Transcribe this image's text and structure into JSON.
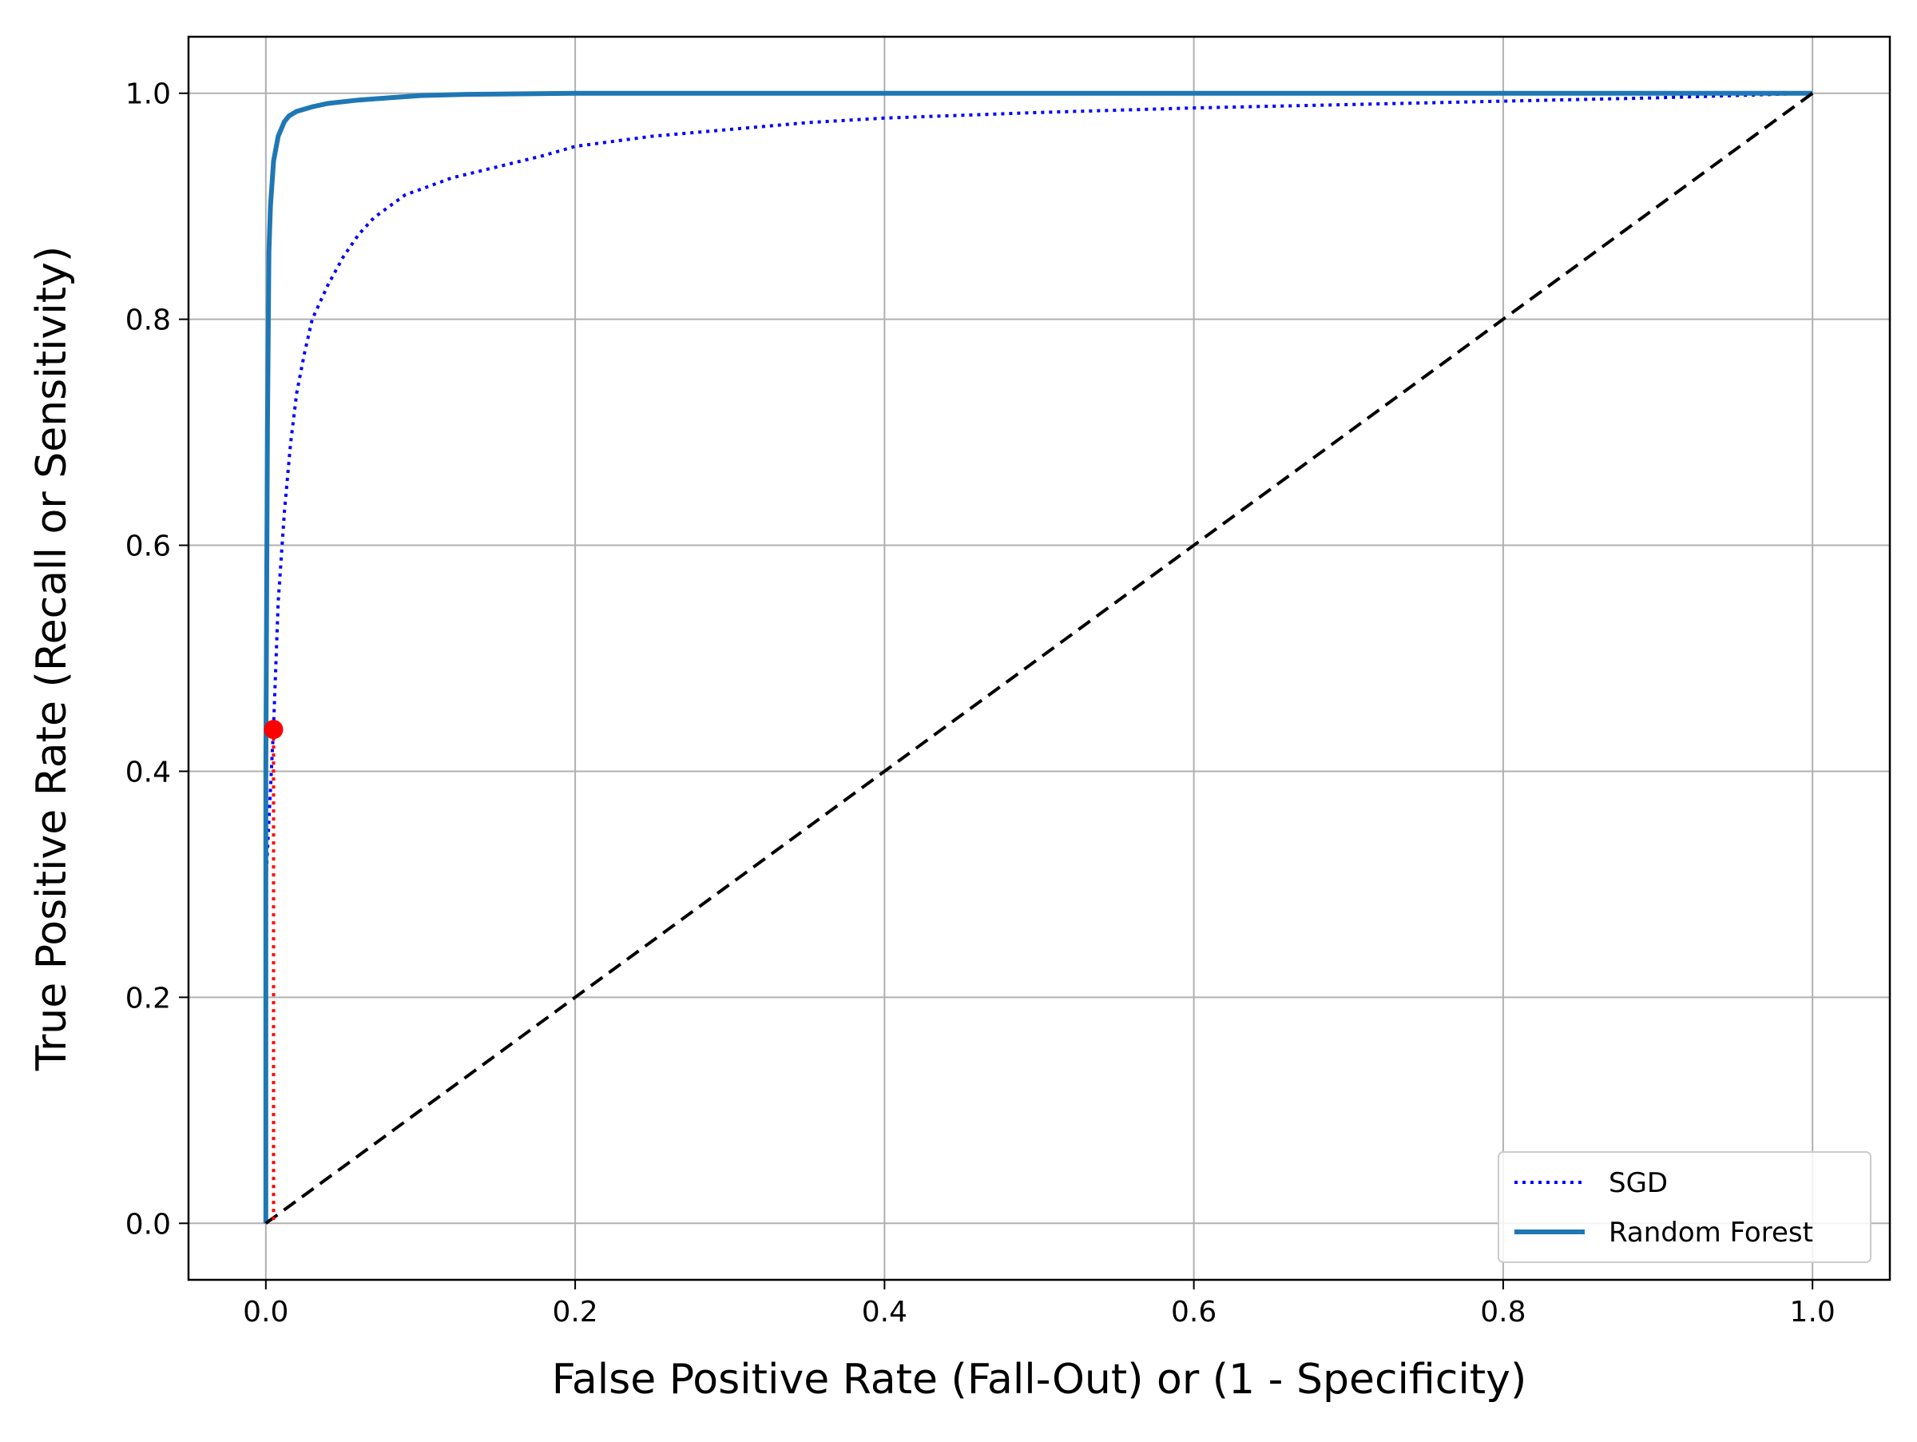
{
  "chart_data": {
    "type": "line",
    "title": "",
    "xlabel": "False Positive Rate (Fall-Out) or (1 - Specificity)",
    "ylabel": "True Positive Rate (Recall or Sensitivity)",
    "xlim": [
      -0.05,
      1.05
    ],
    "ylim": [
      -0.05,
      1.05
    ],
    "xticks": [
      "0.0",
      "0.2",
      "0.4",
      "0.6",
      "0.8",
      "1.0"
    ],
    "yticks": [
      "0.0",
      "0.2",
      "0.4",
      "0.6",
      "0.8",
      "1.0"
    ],
    "grid": true,
    "legend_position": "lower-right",
    "series": [
      {
        "name": "SGD",
        "style": "dotted",
        "color": "#0000ff",
        "x": [
          0.0,
          0.0,
          0.005,
          0.008,
          0.012,
          0.016,
          0.02,
          0.025,
          0.03,
          0.04,
          0.05,
          0.06,
          0.07,
          0.08,
          0.09,
          0.1,
          0.12,
          0.15,
          0.18,
          0.2,
          0.25,
          0.3,
          0.35,
          0.4,
          0.5,
          0.6,
          0.7,
          0.8,
          0.9,
          1.0
        ],
        "y": [
          0.0,
          0.3,
          0.44,
          0.55,
          0.63,
          0.69,
          0.735,
          0.77,
          0.8,
          0.83,
          0.855,
          0.875,
          0.89,
          0.9,
          0.91,
          0.915,
          0.925,
          0.935,
          0.945,
          0.953,
          0.962,
          0.968,
          0.974,
          0.978,
          0.983,
          0.987,
          0.99,
          0.993,
          0.996,
          1.0
        ]
      },
      {
        "name": "Random Forest",
        "style": "solid",
        "color": "#1f77b4",
        "x": [
          0.0,
          0.0,
          0.001,
          0.002,
          0.003,
          0.005,
          0.008,
          0.012,
          0.015,
          0.02,
          0.03,
          0.04,
          0.06,
          0.08,
          0.1,
          0.13,
          0.2,
          0.4,
          0.6,
          0.8,
          1.0
        ],
        "y": [
          0.0,
          0.4,
          0.7,
          0.86,
          0.9,
          0.94,
          0.962,
          0.975,
          0.98,
          0.984,
          0.988,
          0.991,
          0.994,
          0.996,
          0.998,
          0.999,
          1.0,
          1.0,
          1.0,
          1.0,
          1.0
        ]
      }
    ],
    "reference_line": {
      "style": "dashed",
      "color": "#000000",
      "x": [
        0.0,
        1.0
      ],
      "y": [
        0.0,
        1.0
      ]
    },
    "highlight_point": {
      "x": 0.005,
      "y": 0.437,
      "color": "#ff0000",
      "guide_style": "dotted"
    }
  }
}
